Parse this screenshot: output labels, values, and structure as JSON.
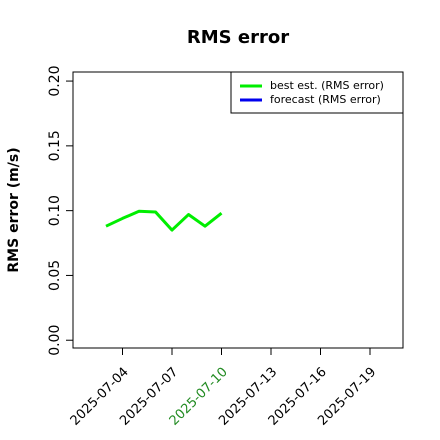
{
  "chart_data": {
    "type": "line",
    "title": "RMS error",
    "y_label": "RMS error (m/s)",
    "x": [
      "2025-07-03",
      "2025-07-04",
      "2025-07-05",
      "2025-07-06",
      "2025-07-07",
      "2025-07-08",
      "2025-07-09",
      "2025-07-10"
    ],
    "series": [
      {
        "name": "best est. (RMS error)",
        "color": "#00ee00",
        "values": [
          0.088,
          0.094,
          0.0995,
          0.099,
          0.085,
          0.097,
          0.088,
          0.098
        ]
      },
      {
        "name": "forecast (RMS error)",
        "color": "#0000ee",
        "values": [
          null,
          null,
          null,
          null,
          null,
          null,
          null,
          null
        ]
      }
    ],
    "xlim": [
      "2025-07-01",
      "2025-07-21"
    ],
    "xticks": [
      "2025-07-04",
      "2025-07-07",
      "2025-07-10",
      "2025-07-13",
      "2025-07-16",
      "2025-07-19"
    ],
    "highlight_xtick": "2025-07-10",
    "highlight_color": "#228b22",
    "ylim": [
      -0.006,
      0.207
    ],
    "yticks": [
      {
        "value": 0,
        "label": "0.00"
      },
      0.05,
      {
        "value": 0.1,
        "label": "0.10"
      },
      0.15,
      {
        "value": 0.2,
        "label": "0.20"
      }
    ],
    "legend": "upper right",
    "grid": false
  }
}
